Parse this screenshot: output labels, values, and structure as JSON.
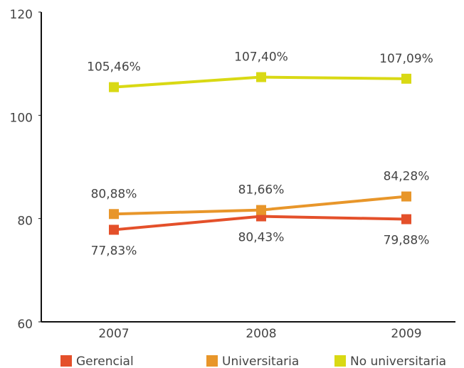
{
  "chart_data": {
    "type": "line",
    "categories": [
      "2007",
      "2008",
      "2009"
    ],
    "series": [
      {
        "name": "Gerencial",
        "color": "#e4502a",
        "values": [
          77.83,
          80.43,
          79.88
        ],
        "value_labels": [
          "77,83%",
          "80,43%",
          "79,88%"
        ]
      },
      {
        "name": "Universitaria",
        "color": "#e8962a",
        "values": [
          80.88,
          81.66,
          84.28
        ],
        "value_labels": [
          "80,88%",
          "81,66%",
          "84,28%"
        ]
      },
      {
        "name": "No universitaria",
        "color": "#d9d914",
        "values": [
          105.46,
          107.4,
          107.09
        ],
        "value_labels": [
          "105,46%",
          "107,40%",
          "107,09%"
        ]
      }
    ],
    "ylim": [
      60,
      120
    ],
    "yticks": [
      60,
      80,
      100,
      120
    ],
    "grid": false
  }
}
